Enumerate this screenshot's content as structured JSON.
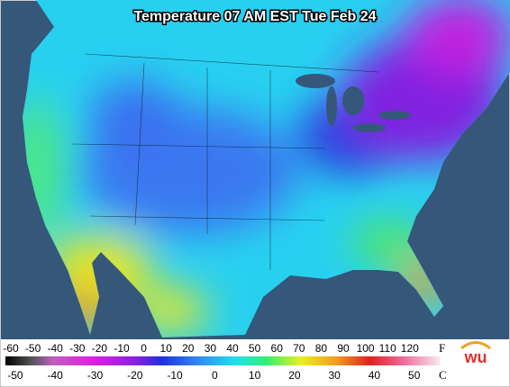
{
  "title": "Temperature 07 AM EST Tue Feb 24",
  "legend": {
    "fahrenheit": {
      "unit": "F",
      "labels": [
        -60,
        -50,
        -40,
        -30,
        -20,
        -10,
        0,
        10,
        20,
        30,
        40,
        50,
        60,
        70,
        80,
        90,
        100,
        110,
        120
      ]
    },
    "celsius": {
      "unit": "C",
      "labels": [
        -50,
        -40,
        -30,
        -20,
        -10,
        0,
        10,
        20,
        30,
        40,
        50
      ]
    }
  },
  "logo": "wu"
}
